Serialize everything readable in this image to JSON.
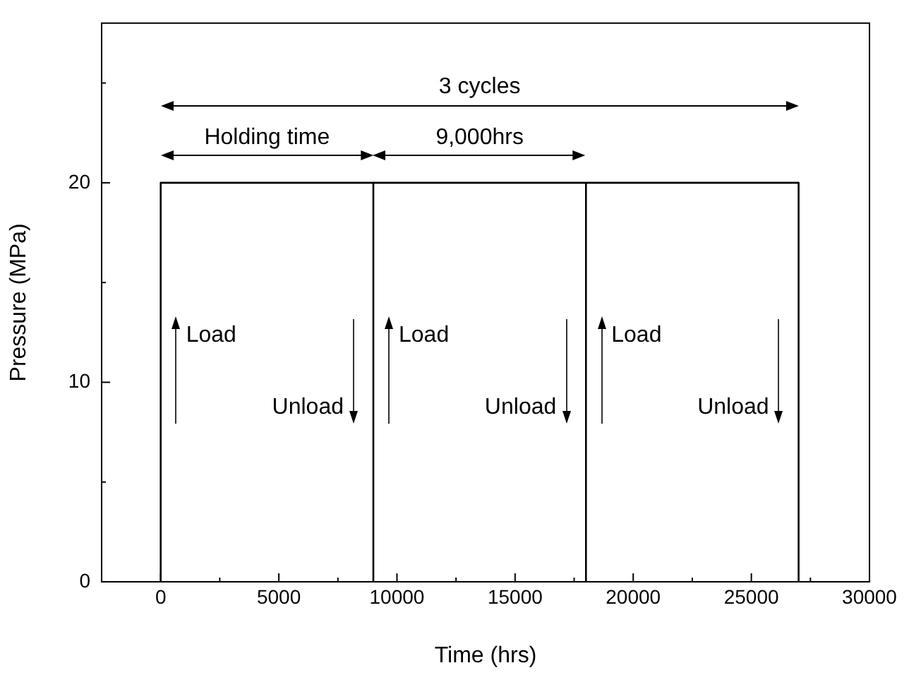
{
  "chart_data": {
    "type": "line",
    "xlabel": "Time (hrs)",
    "ylabel": "Pressure (MPa)",
    "x": [
      0,
      0,
      9000,
      9000,
      9000,
      18000,
      18000,
      18000,
      27000,
      27000
    ],
    "series": [
      {
        "color": "#000000",
        "values": [
          0,
          20,
          20,
          0,
          20,
          20,
          0,
          20,
          20,
          0
        ]
      }
    ],
    "xlim": [
      -2500,
      30000
    ],
    "xticks": [
      0,
      {
        "value": 2500,
        "label": null
      },
      5000,
      {
        "value": 7500,
        "label": null
      },
      10000,
      {
        "value": 12500,
        "label": null
      },
      15000,
      {
        "value": 17500,
        "label": null
      },
      20000,
      {
        "value": 22500,
        "label": null
      },
      25000,
      {
        "value": 27500,
        "label": null
      },
      30000
    ],
    "ylim": [
      0,
      28
    ],
    "yticks": [
      0,
      {
        "value": 5,
        "label": null
      },
      10,
      {
        "value": 15,
        "label": null
      },
      20,
      {
        "value": 25,
        "label": null
      }
    ],
    "marker": "none",
    "line_style": "solid",
    "grid": false,
    "legend": false,
    "annotations": [
      "3 cycles",
      "Holding time",
      "9,000hrs",
      "Load",
      "Load",
      "Load",
      "Unload",
      "Unload",
      "Unload"
    ]
  }
}
